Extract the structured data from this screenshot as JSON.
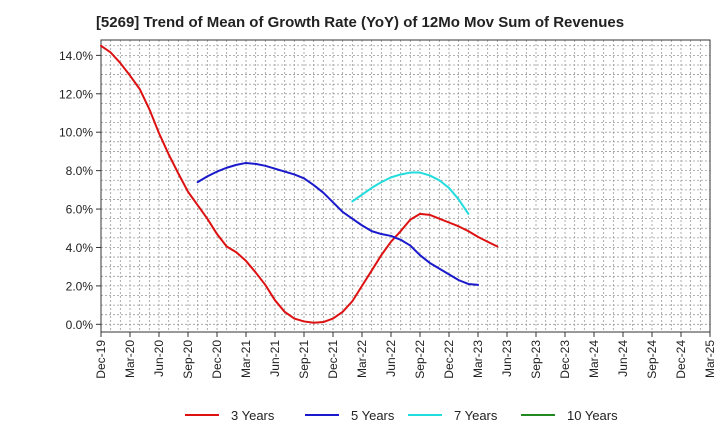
{
  "chart_data": {
    "type": "line",
    "title": "[5269]  Trend of Mean of Growth Rate (YoY) of 12Mo Mov Sum of Revenues",
    "xlabel": "",
    "ylabel": "",
    "x_tick_labels": [
      "Dec-19",
      "Mar-20",
      "Jun-20",
      "Sep-20",
      "Dec-20",
      "Mar-21",
      "Jun-21",
      "Sep-21",
      "Dec-21",
      "Mar-22",
      "Jun-22",
      "Sep-22",
      "Dec-22",
      "Mar-23",
      "Jun-23",
      "Sep-23",
      "Dec-23",
      "Mar-24",
      "Jun-24",
      "Sep-24",
      "Dec-24",
      "Mar-25"
    ],
    "y_ticks": [
      0,
      2,
      4,
      6,
      8,
      10,
      12,
      14
    ],
    "y_tick_labels": [
      "0.0%",
      "2.0%",
      "4.0%",
      "6.0%",
      "8.0%",
      "10.0%",
      "12.0%",
      "14.0%"
    ],
    "ylim": [
      -0.4,
      14.8
    ],
    "grid": true,
    "legend_position": "bottom",
    "series": [
      {
        "name": "3 Years",
        "color": "#dd1111",
        "start_index": 0,
        "values": [
          14.5,
          14.15,
          13.6,
          12.95,
          12.25,
          11.2,
          9.95,
          8.85,
          7.85,
          6.9,
          6.2,
          5.5,
          4.7,
          4.05,
          3.75,
          3.3,
          2.7,
          2.05,
          1.25,
          0.65,
          0.3,
          0.15,
          0.08,
          0.12,
          0.3,
          0.65,
          1.2,
          2.0,
          2.8,
          3.6,
          4.3,
          4.85,
          5.45,
          5.75,
          5.7,
          5.5,
          5.3,
          5.1,
          4.85,
          4.55,
          4.3,
          4.05
        ]
      },
      {
        "name": "5 Years",
        "color": "#1a1acc",
        "start_index": 10,
        "values": [
          7.4,
          7.7,
          7.95,
          8.15,
          8.3,
          8.4,
          8.35,
          8.25,
          8.1,
          7.95,
          7.8,
          7.6,
          7.25,
          6.85,
          6.35,
          5.85,
          5.5,
          5.15,
          4.85,
          4.7,
          4.6,
          4.4,
          4.1,
          3.6,
          3.2,
          2.9,
          2.6,
          2.3,
          2.1,
          2.05
        ]
      },
      {
        "name": "7 Years",
        "color": "#22dddd",
        "start_index": 26,
        "values": [
          6.4,
          6.75,
          7.1,
          7.4,
          7.65,
          7.8,
          7.9,
          7.9,
          7.75,
          7.5,
          7.1,
          6.5,
          5.75
        ]
      },
      {
        "name": "10 Years",
        "color": "#228822",
        "start_index": 0,
        "values": []
      }
    ]
  }
}
